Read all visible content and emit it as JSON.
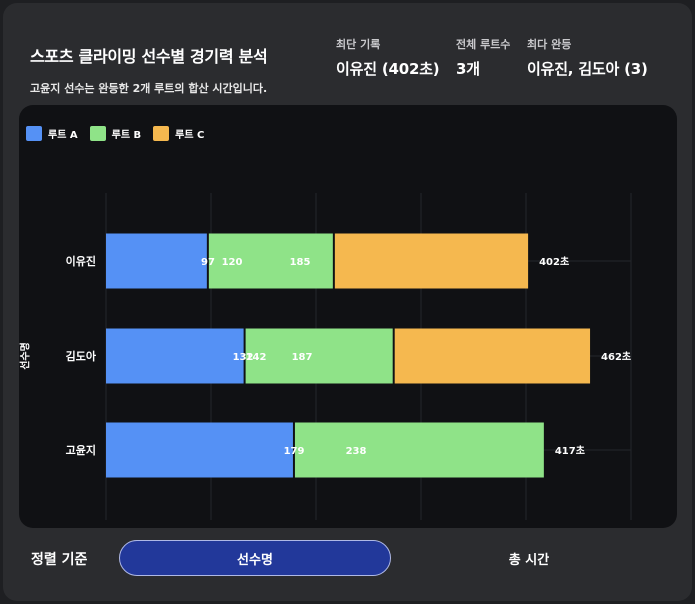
{
  "header": {
    "title": "스포츠 클라이밍 선수별 경기력 분석",
    "subtitle": "고윤지 선수는 완등한 2개 루트의 합산 시간입니다."
  },
  "stats": [
    {
      "label": "최단 기록",
      "value": "이유진 (402초)"
    },
    {
      "label": "전체 루트수",
      "value": "3개"
    },
    {
      "label": "최다 완등",
      "value": "이유진, 김도아 (3)"
    }
  ],
  "chart_data": {
    "type": "bar",
    "orientation": "horizontal",
    "stacked": true,
    "categories": [
      "이유진",
      "김도아",
      "고윤지"
    ],
    "series": [
      {
        "name": "루트 A",
        "color": "#5591f5",
        "values": [
          97,
          132,
          179
        ],
        "labels": [
          "97",
          "132",
          "179"
        ]
      },
      {
        "name": "루트 B",
        "color": "#8fe388",
        "values": [
          120,
          142,
          238
        ],
        "labels": [
          "120",
          "142",
          "238"
        ]
      },
      {
        "name": "루트 C",
        "color": "#f5b84f",
        "values": [
          185,
          187,
          null
        ],
        "labels": [
          "185",
          "187",
          ""
        ]
      }
    ],
    "totals": [
      "402초",
      "462초",
      "417초"
    ],
    "ylabel": "선수명",
    "xlim": [
      0,
      500
    ],
    "grid": true,
    "legend": "top-left"
  },
  "sort": {
    "label": "정렬 기준",
    "options": [
      {
        "label": "선수명",
        "active": true
      },
      {
        "label": "총 시간",
        "active": false
      }
    ]
  }
}
